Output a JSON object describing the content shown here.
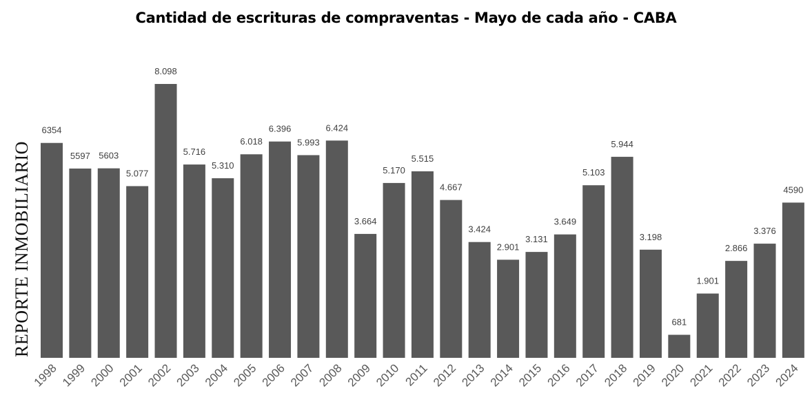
{
  "chart_data": {
    "type": "bar",
    "title": "Cantidad de escrituras de compraventas - Mayo de cada año - CABA",
    "watermark": "REPORTE INMOBILIARIO",
    "categories": [
      "1998",
      "1999",
      "2000",
      "2001",
      "2002",
      "2003",
      "2004",
      "2005",
      "2006",
      "2007",
      "2008",
      "2009",
      "2010",
      "2011",
      "2012",
      "2013",
      "2014",
      "2015",
      "2016",
      "2017",
      "2018",
      "2019",
      "2020",
      "2021",
      "2022",
      "2023",
      "2024"
    ],
    "values": [
      6354,
      5597,
      5603,
      5077,
      8098,
      5716,
      5310,
      6018,
      6396,
      5993,
      6424,
      3664,
      5170,
      5515,
      4667,
      3424,
      2901,
      3131,
      3649,
      5103,
      5944,
      3198,
      681,
      1901,
      2866,
      3376,
      4590
    ],
    "data_labels": [
      "6354",
      "5597",
      "5603",
      "5.077",
      "8.098",
      "5.716",
      "5.310",
      "6.018",
      "6.396",
      "5.993",
      "6.424",
      "3.664",
      "5.170",
      "5.515",
      "4.667",
      "3.424",
      "2.901",
      "3.131",
      "3.649",
      "5.103",
      "5.944",
      "3.198",
      "681",
      "1.901",
      "2.866",
      "3.376",
      "4590"
    ],
    "xlabel": "",
    "ylabel": "",
    "ylim": [
      0,
      8098
    ],
    "grid": false,
    "legend": "none",
    "colors": {
      "bar": "#595959",
      "tick_label": "#595959",
      "data_label": "#404040"
    }
  }
}
